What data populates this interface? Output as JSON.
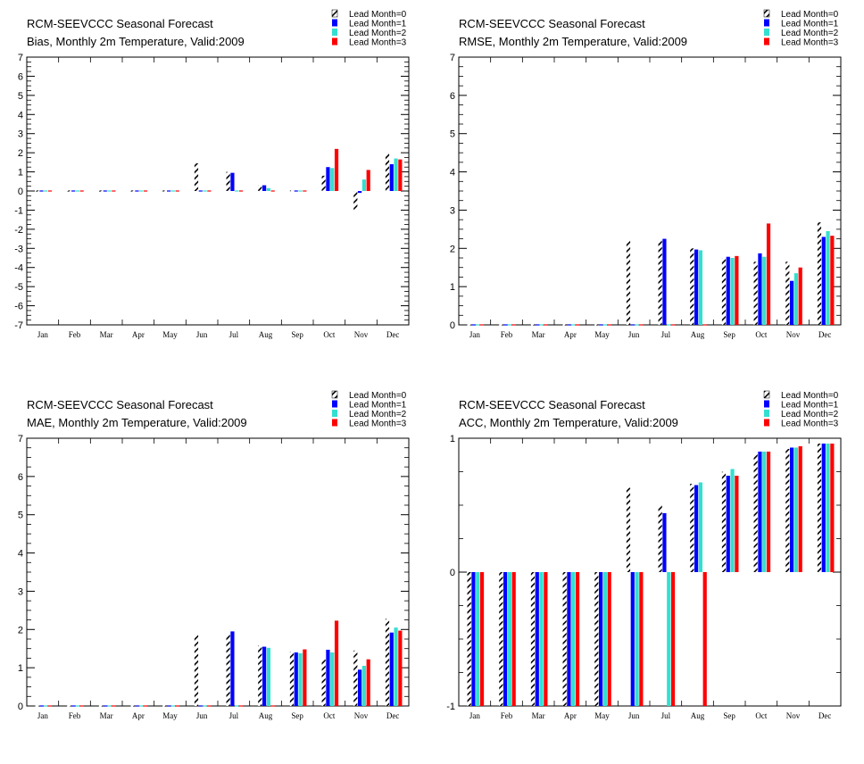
{
  "colors": {
    "lead0_stripe": "#000000",
    "lead1": "#0000ff",
    "lead2": "#33e0d0",
    "lead3": "#ff0000",
    "axis": "#000000"
  },
  "legend": [
    "Lead Month=0",
    "Lead Month=1",
    "Lead Month=2",
    "Lead Month=3"
  ],
  "chart_data": [
    {
      "type": "bar",
      "title": "RCM-SEEVCCC Seasonal Forecast",
      "subtitle": "Bias, Monthly 2m Temperature, Valid:2009",
      "categories": [
        "Jan",
        "Feb",
        "Mar",
        "Apr",
        "May",
        "Jun",
        "Jul",
        "Aug",
        "Sep",
        "Oct",
        "Nov",
        "Dec"
      ],
      "ylim": [
        -7,
        7
      ],
      "yticks": [
        -7,
        -6,
        -5,
        -4,
        -3,
        -2,
        -1,
        0,
        1,
        2,
        3,
        4,
        5,
        6,
        7
      ],
      "legend_position": "top-right",
      "series": [
        {
          "name": "Lead Month=0",
          "values": [
            0,
            0,
            0,
            0,
            0,
            1.45,
            1.0,
            0.3,
            0.05,
            0.8,
            -1.0,
            1.95
          ]
        },
        {
          "name": "Lead Month=1",
          "values": [
            0,
            0,
            0,
            0,
            0,
            0,
            0.95,
            0.3,
            0,
            1.25,
            -0.1,
            1.4
          ]
        },
        {
          "name": "Lead Month=2",
          "values": [
            0,
            0,
            0,
            0,
            0,
            0,
            0,
            0.15,
            0,
            1.2,
            0.6,
            1.7
          ]
        },
        {
          "name": "Lead Month=3",
          "values": [
            0,
            0,
            0,
            0,
            0,
            0,
            0,
            0,
            0.05,
            2.2,
            1.1,
            1.65
          ]
        }
      ]
    },
    {
      "type": "bar",
      "title": "RCM-SEEVCCC Seasonal Forecast",
      "subtitle": "RMSE, Monthly 2m Temperature, Valid:2009",
      "categories": [
        "Jan",
        "Feb",
        "Mar",
        "Apr",
        "May",
        "Jun",
        "Jul",
        "Aug",
        "Sep",
        "Oct",
        "Nov",
        "Dec"
      ],
      "ylim": [
        0,
        7
      ],
      "yticks": [
        0,
        1,
        2,
        3,
        4,
        5,
        6,
        7
      ],
      "legend_position": "top-right",
      "series": [
        {
          "name": "Lead Month=0",
          "values": [
            0,
            0,
            0,
            0,
            0,
            2.2,
            2.22,
            2.0,
            1.75,
            1.65,
            1.65,
            2.68
          ]
        },
        {
          "name": "Lead Month=1",
          "values": [
            0,
            0,
            0,
            0,
            0,
            0,
            2.25,
            1.97,
            1.78,
            1.87,
            1.15,
            2.3
          ]
        },
        {
          "name": "Lead Month=2",
          "values": [
            0,
            0,
            0,
            0,
            0,
            0,
            0,
            1.95,
            1.75,
            1.78,
            1.35,
            2.45
          ]
        },
        {
          "name": "Lead Month=3",
          "values": [
            0,
            0,
            0,
            0,
            0,
            0,
            0,
            0,
            1.8,
            2.65,
            1.5,
            2.33
          ]
        }
      ]
    },
    {
      "type": "bar",
      "title": "RCM-SEEVCCC Seasonal Forecast",
      "subtitle": "MAE, Monthly 2m Temperature, Valid:2009",
      "categories": [
        "Jan",
        "Feb",
        "Mar",
        "Apr",
        "May",
        "Jun",
        "Jul",
        "Aug",
        "Sep",
        "Oct",
        "Nov",
        "Dec"
      ],
      "ylim": [
        0,
        7
      ],
      "yticks": [
        0,
        1,
        2,
        3,
        4,
        5,
        6,
        7
      ],
      "legend_position": "top-right",
      "series": [
        {
          "name": "Lead Month=0",
          "values": [
            0,
            0,
            0,
            0,
            0,
            1.87,
            1.87,
            1.58,
            1.42,
            1.22,
            1.45,
            2.28
          ]
        },
        {
          "name": "Lead Month=1",
          "values": [
            0,
            0,
            0,
            0,
            0,
            0,
            1.95,
            1.55,
            1.4,
            1.47,
            0.95,
            1.92
          ]
        },
        {
          "name": "Lead Month=2",
          "values": [
            0,
            0,
            0,
            0,
            0,
            0,
            0,
            1.52,
            1.38,
            1.4,
            1.05,
            2.05
          ]
        },
        {
          "name": "Lead Month=3",
          "values": [
            0,
            0,
            0,
            0,
            0,
            0,
            0,
            0,
            1.48,
            2.23,
            1.22,
            1.97
          ]
        }
      ]
    },
    {
      "type": "bar",
      "title": "RCM-SEEVCCC Seasonal Forecast",
      "subtitle": "ACC, Monthly 2m Temperature, Valid:2009",
      "categories": [
        "Jan",
        "Feb",
        "Mar",
        "Apr",
        "May",
        "Jun",
        "Jul",
        "Aug",
        "Sep",
        "Oct",
        "Nov",
        "Dec"
      ],
      "ylim": [
        -1,
        1
      ],
      "yticks": [
        -1,
        0,
        1
      ],
      "legend_position": "top-right",
      "series": [
        {
          "name": "Lead Month=0",
          "values": [
            -1,
            -1,
            -1,
            -1,
            -1,
            0.63,
            0.5,
            0.66,
            0.75,
            0.88,
            0.92,
            0.96
          ]
        },
        {
          "name": "Lead Month=1",
          "values": [
            -1,
            -1,
            -1,
            -1,
            -1,
            -1,
            0.44,
            0.65,
            0.72,
            0.9,
            0.93,
            0.96
          ]
        },
        {
          "name": "Lead Month=2",
          "values": [
            -1,
            -1,
            -1,
            -1,
            -1,
            -1,
            -1,
            0.67,
            0.77,
            0.9,
            0.93,
            0.96
          ]
        },
        {
          "name": "Lead Month=3",
          "values": [
            -1,
            -1,
            -1,
            -1,
            -1,
            -1,
            -1,
            -1,
            0.72,
            0.9,
            0.94,
            0.96
          ]
        }
      ]
    }
  ]
}
